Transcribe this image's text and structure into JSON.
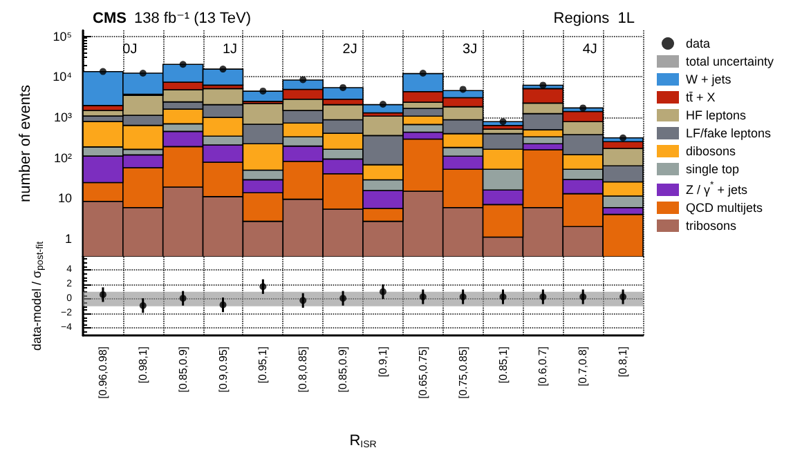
{
  "chart_data": [
    {
      "type": "bar",
      "title": "CMS",
      "subtitle": "138 fb⁻¹ (13 TeV)",
      "ylabel": "number of events",
      "annotations": [
        "Regions  1L",
        "0J",
        "1J",
        "2J",
        "3J",
        "4J"
      ],
      "stacked": true,
      "log": "y",
      "grid": true,
      "legend": "right",
      "tick_labels": "y",
      "categories": [
        "[0.96,0.98]",
        "[0.98,1]",
        "[0.85,0.9]",
        "[0.9,0.95]",
        "[0.95,1]",
        "[0.8,0.85]",
        "[0.85,0.9]",
        "[0.9,1]",
        "[0.65,0.75]",
        "[0.75,0.85]",
        "[0.85,1]",
        "[0.6,0.7]",
        "[0.7,0.8]",
        "[0.8,1]"
      ],
      "ylim": [
        0.36,
        140000
      ],
      "yticks": [
        1,
        10,
        {
          "value": 100,
          "label": "10²"
        },
        {
          "value": 1000,
          "label": "10³"
        },
        {
          "value": 10000,
          "label": "10⁴"
        },
        {
          "value": 100000,
          "label": "10⁵"
        }
      ],
      "series": [
        {
          "name": "tribosons",
          "color": "#a9695a",
          "values": [
            8.4,
            5.9,
            19,
            11,
            2.7,
            9.5,
            5.4,
            2.7,
            15,
            5.9,
            1.1,
            5.9,
            2.0,
            null
          ]
        },
        {
          "name": "QCD multijets",
          "color": "#e5680a",
          "values": [
            16,
            51,
            170,
            67,
            11,
            72,
            35,
            2.9,
            275,
            46,
            5.9,
            152,
            11,
            4.0
          ]
        },
        {
          "name": "Z / γ$^{*}$ + jets",
          "color": "#7c2ebf",
          "values": [
            86,
            61,
            260,
            130,
            15,
            113,
            53,
            10,
            140,
            58,
            9,
            64,
            16,
            1.9
          ]
        },
        {
          "name": "single top",
          "color": "#95a3a0",
          "values": [
            75,
            44,
            240,
            135,
            21,
            135,
            69,
            13,
            235,
            70,
            36,
            108,
            23,
            5.5
          ]
        },
        {
          "name": "dibosons",
          "color": "#fca71b",
          "values": [
            600,
            470,
            900,
            650,
            172,
            390,
            243,
            39,
            405,
            215,
            110,
            160,
            68,
            14
          ]
        },
        {
          "name": "LF/fake leptons",
          "color": "#6f7480",
          "values": [
            290,
            490,
            810,
            1060,
            450,
            750,
            465,
            287,
            590,
            475,
            233,
            740,
            255,
            38
          ]
        },
        {
          "name": "HF leptons",
          "color": "#b8a978",
          "values": [
            400,
            2350,
            2400,
            3050,
            1510,
            1330,
            1180,
            715,
            690,
            950,
            115,
            1010,
            405,
            107
          ]
        },
        {
          "name": "tt̄ + X",
          "color": "#c0230c",
          "values": [
            480,
            230,
            2600,
            1100,
            290,
            2100,
            750,
            220,
            1950,
            1230,
            120,
            2860,
            610,
            80
          ]
        },
        {
          "name": "W + jets",
          "color": "#3a8fd9",
          "values": [
            11500,
            8600,
            12900,
            9300,
            1930,
            3400,
            2600,
            760,
            7700,
            1500,
            150,
            1100,
            310,
            60
          ]
        },
        {
          "name": "data",
          "type": "scatter",
          "color": "#000000",
          "values": [
            13500,
            12300,
            20300,
            15500,
            4450,
            8500,
            5400,
            2100,
            12300,
            4900,
            780,
            6200,
            1700,
            310
          ]
        }
      ]
    },
    {
      "type": "scatter",
      "xlabel": "R$_{ISR}$",
      "ylabel": "data-model / σ$_{post-fit}$",
      "grid": true,
      "marker": "circle",
      "categories": [
        "[0.96,0.98]",
        "[0.98,1]",
        "[0.85,0.9]",
        "[0.9,0.95]",
        "[0.95,1]",
        "[0.8,0.85]",
        "[0.85,0.9]",
        "[0.9,1]",
        "[0.65,0.75]",
        "[0.75,0.85]",
        "[0.85,1]",
        "[0.6,0.7]",
        "[0.7,0.8]",
        "[0.8,1]"
      ],
      "ylim": [
        -5,
        5.8
      ],
      "yticks": [
        {
          "value": -4,
          "label": "−4"
        },
        {
          "value": -2,
          "label": "−2"
        },
        0,
        2,
        4
      ],
      "bands": [
        {
          "axis": "y",
          "from": -1,
          "to": 1,
          "label": "total uncertainty",
          "color": "#8c8c8c"
        }
      ],
      "series": [
        {
          "color": "#000000",
          "values": [
            0.6,
            -0.9,
            0.1,
            -0.8,
            1.7,
            -0.2,
            0.1,
            1.0,
            0.3,
            0.3,
            0.3,
            0.3,
            0.3,
            0.3
          ],
          "errors": [
            1,
            1,
            1,
            1,
            1,
            1,
            1,
            1,
            1,
            1,
            1,
            1,
            1,
            1
          ]
        }
      ]
    }
  ]
}
